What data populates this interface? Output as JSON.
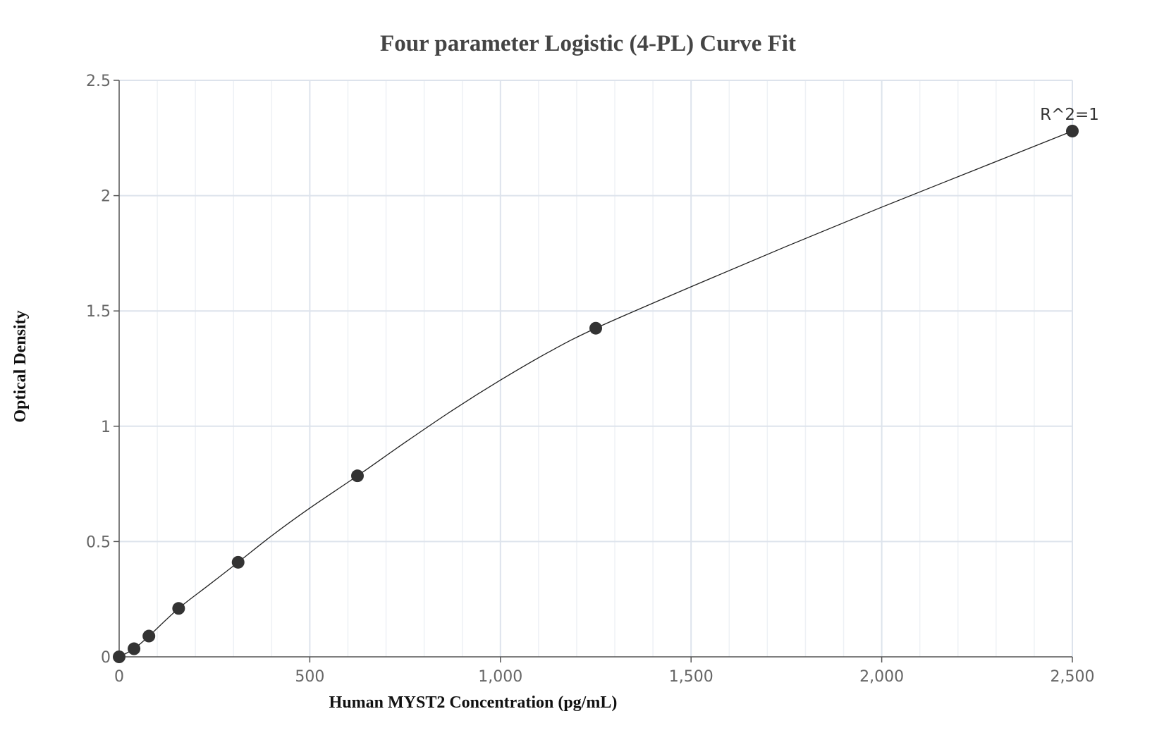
{
  "chart_data": {
    "type": "scatter",
    "title": "Four parameter Logistic (4-PL) Curve Fit",
    "xlabel": "Human MYST2 Concentration (pg/mL)",
    "ylabel": "Optical Density",
    "xlim": [
      0,
      2500
    ],
    "ylim": [
      0,
      2.5
    ],
    "x_ticks": [
      0,
      500,
      1000,
      1500,
      2000,
      2500
    ],
    "x_tick_labels": [
      "0",
      "500",
      "1,000",
      "1,500",
      "2,000",
      "2,500"
    ],
    "y_ticks": [
      0,
      0.5,
      1,
      1.5,
      2,
      2.5
    ],
    "y_tick_labels": [
      "0",
      "0.5",
      "1",
      "1.5",
      "2",
      "2.5"
    ],
    "grid": true,
    "series": [
      {
        "x": [
          0,
          39,
          78,
          156,
          312,
          625,
          1250,
          2500
        ],
        "y": [
          0.0,
          0.035,
          0.09,
          0.21,
          0.41,
          0.785,
          1.425,
          2.28
        ]
      }
    ],
    "fit_curve": {
      "x": [
        0,
        39,
        78,
        156,
        234,
        312,
        400,
        500,
        625,
        750,
        875,
        1000,
        1125,
        1250,
        1500,
        1750,
        2000,
        2250,
        2500
      ],
      "y": [
        0.0,
        0.035,
        0.09,
        0.21,
        0.31,
        0.41,
        0.525,
        0.645,
        0.785,
        0.93,
        1.07,
        1.2,
        1.32,
        1.425,
        1.605,
        1.78,
        1.95,
        2.115,
        2.28
      ]
    },
    "annotation": {
      "text": "R^2=1",
      "x": 2500,
      "y": 2.28
    },
    "colors": {
      "marker": "#333333",
      "curve": "#222222",
      "grid_major": "#dde3ec",
      "grid_minor": "#eef1f5",
      "axis": "#555555"
    }
  }
}
